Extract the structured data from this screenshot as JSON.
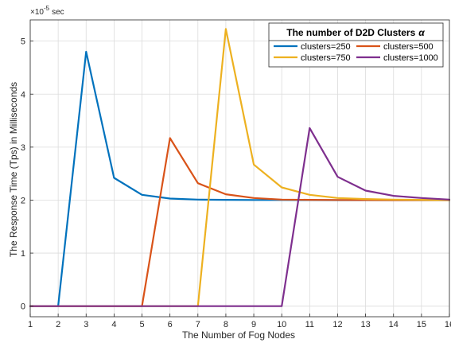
{
  "chart_data": {
    "type": "line",
    "xlabel": "The Number of Fog Nodes",
    "ylabel": "The Response Time (Tps) in Milliseconds",
    "y_multiplier_base": "×10",
    "y_multiplier_exp": "-5",
    "y_multiplier_unit": "sec",
    "xlim": [
      1,
      16
    ],
    "ylim": [
      -0.2,
      5.4
    ],
    "x_ticks": [
      1,
      2,
      3,
      4,
      5,
      6,
      7,
      8,
      9,
      10,
      11,
      12,
      13,
      14,
      15,
      16
    ],
    "x_tick_labels": [
      "1",
      "2",
      "3",
      "4",
      "5",
      "6",
      "7",
      "8",
      "9",
      "10",
      "11",
      "12",
      "13",
      "14",
      "15",
      "16"
    ],
    "y_ticks": [
      0,
      1,
      2,
      3,
      4,
      5
    ],
    "y_tick_labels": [
      "0",
      "1",
      "2",
      "3",
      "4",
      "5"
    ],
    "grid": true,
    "legend": {
      "title_text": "The number of D2D Clusters",
      "title_symbol": "α",
      "placement": "top-right",
      "columns": 2
    },
    "x": [
      1,
      2,
      3,
      4,
      5,
      6,
      7,
      8,
      9,
      10,
      11,
      12,
      13,
      14,
      15,
      16
    ],
    "series": [
      {
        "name": "clusters=250",
        "color": "#0072BD",
        "values": [
          0,
          0,
          4.8,
          2.42,
          2.1,
          2.03,
          2.01,
          2.005,
          2.003,
          2.002,
          2.001,
          2.0,
          2.0,
          2.0,
          2.0,
          2.0
        ]
      },
      {
        "name": "clusters=500",
        "color": "#D95319",
        "values": [
          0,
          0,
          0,
          0,
          0,
          3.17,
          2.32,
          2.11,
          2.04,
          2.01,
          2.005,
          2.002,
          2.001,
          2.0,
          2.0,
          2.0
        ]
      },
      {
        "name": "clusters=750",
        "color": "#EDB120",
        "values": [
          0,
          0,
          0,
          0,
          0,
          0,
          0,
          5.23,
          2.67,
          2.24,
          2.1,
          2.04,
          2.02,
          2.01,
          2.005,
          2.0
        ]
      },
      {
        "name": "clusters=1000",
        "color": "#7E2F8E",
        "values": [
          0,
          0,
          0,
          0,
          0,
          0,
          0,
          0,
          0,
          0,
          3.36,
          2.44,
          2.18,
          2.08,
          2.04,
          2.01
        ]
      }
    ]
  }
}
